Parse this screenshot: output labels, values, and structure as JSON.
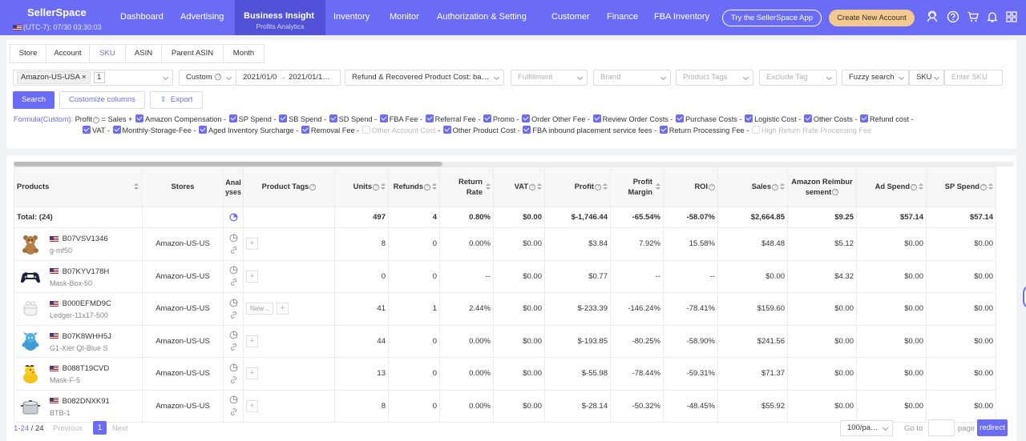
{
  "header": {
    "brand": "SellerSpace",
    "timezone": "(UTC-7): 07/30 03:30:03",
    "nav": [
      {
        "label": "Dashboard"
      },
      {
        "label": "Advertising"
      },
      {
        "label": "Business Insight",
        "sub": "Profits Analytics",
        "active": true
      },
      {
        "label": "Inventory"
      },
      {
        "label": "Monitor"
      },
      {
        "label": "Authorization & Setting"
      },
      {
        "label": "Customer"
      },
      {
        "label": "Finance"
      },
      {
        "label": "FBA Inventory"
      }
    ],
    "app_button": "Try the SellerSpace App",
    "create_button": "Create New Account",
    "icons": [
      "user-service-icon",
      "help-icon",
      "cart-icon",
      "bell-icon",
      "grid-icon"
    ],
    "accent": "#6b6cf6"
  },
  "tabs": [
    "Store",
    "Account",
    "SKU",
    "ASIN",
    "Parent ASIN",
    "Month"
  ],
  "active_tab": "SKU",
  "filters": {
    "store_chip": "Amazon-US-USA",
    "store_count": "1",
    "date_mode": "Custom",
    "date_from": "2021/01/0",
    "date_to": "2021/01/1…",
    "cost_mode": "Refund & Recovered Product Cost: ba…",
    "fulfillment_placeholder": "Fulfillment",
    "brand_placeholder": "Brand",
    "product_tags_placeholder": "Product Tags",
    "exclude_tag_placeholder": "Exclude Tag",
    "search_mode": "Fuzzy search",
    "search_field": "SKU",
    "search_placeholder": "Enter SKU"
  },
  "actions": {
    "search": "Search",
    "customize": "Customize columns",
    "export": "Export"
  },
  "formula": {
    "label": "Formula(Custom):",
    "head": "Profit",
    "eq": "= Sales +",
    "line1": [
      {
        "name": "Amazon Compensation",
        "on": true
      },
      {
        "name": "SP Spend",
        "on": true
      },
      {
        "name": "SB Spend",
        "on": true
      },
      {
        "name": "SD Spend",
        "on": true
      },
      {
        "name": "FBA Fee",
        "on": true
      },
      {
        "name": "Referral Fee",
        "on": true
      },
      {
        "name": "Promo",
        "on": true
      },
      {
        "name": "Order Other Fee",
        "on": true
      },
      {
        "name": "Review Order Costs",
        "on": true
      },
      {
        "name": "Purchase Costs",
        "on": true
      },
      {
        "name": "Logistic Cost",
        "on": true
      },
      {
        "name": "Other Costs",
        "on": true
      },
      {
        "name": "Refund cost",
        "on": true
      }
    ],
    "line2": [
      {
        "name": "VAT",
        "on": true
      },
      {
        "name": "Monthly-Storage-Fee",
        "on": true
      },
      {
        "name": "Aged Inventory Surcharge",
        "on": true
      },
      {
        "name": "Removal Fee",
        "on": true
      },
      {
        "name": "Other Account Cost",
        "on": false
      },
      {
        "name": "Other Product Cost",
        "on": true
      },
      {
        "name": "FBA inbound placement service fees",
        "on": true
      },
      {
        "name": "Return Processing Fee",
        "on": true
      },
      {
        "name": "High Return Rate Processing Fee",
        "on": false
      }
    ]
  },
  "table": {
    "columns": [
      "Products",
      "Stores",
      "Analyses",
      "Product Tags",
      "Units",
      "Refunds",
      "Return Rate",
      "VAT",
      "Profit",
      "Profit Margin",
      "ROI",
      "Sales",
      "Amazon Reimbursement",
      "Ad Spend",
      "SP Spend"
    ],
    "total": {
      "label": "Total: (24)",
      "units": "497",
      "refunds": "4",
      "return_rate": "0.80%",
      "vat": "$0.00",
      "profit": "$-1,746.44",
      "margin": "-65.54%",
      "roi": "-58.07%",
      "sales": "$2,664.85",
      "reimb": "$9.25",
      "ad": "$57.14",
      "sp": "$57.14"
    },
    "rows": [
      {
        "asin": "B07VSV1346",
        "sku": "g-mf50",
        "store": "Amazon-US-US",
        "tag": "",
        "units": "8",
        "refunds": "0",
        "rr": "0.00%",
        "vat": "$0.00",
        "profit": "$3.84",
        "margin": "7.92%",
        "roi": "15.58%",
        "sales": "$48.48",
        "reimb": "$5.12",
        "ad": "$0.00",
        "sp": "$0.00",
        "img": "teddy-bear"
      },
      {
        "asin": "B07KYV178H",
        "sku": "Mask-Box-50",
        "store": "Amazon-US-US",
        "tag": "",
        "units": "0",
        "refunds": "0",
        "rr": "--",
        "vat": "$0.00",
        "profit": "$0.77",
        "margin": "--",
        "roi": "--",
        "sales": "$0.00",
        "reimb": "$4.32",
        "ad": "$0.00",
        "sp": "$0.00",
        "img": "game-controller"
      },
      {
        "asin": "B000EFMD9C",
        "sku": "Ledger-11x17-500",
        "store": "Amazon-US-US",
        "tag": "New ..",
        "units": "41",
        "refunds": "1",
        "rr": "2.44%",
        "vat": "$0.00",
        "profit": "$-233.39",
        "margin": "-146.24%",
        "roi": "-78.41%",
        "sales": "$159.60",
        "reimb": "$0.00",
        "ad": "$0.00",
        "sp": "$0.00",
        "img": "earbuds"
      },
      {
        "asin": "B07K8WHH5J",
        "sku": "G1-Xier QI-Blue S",
        "store": "Amazon-US-US",
        "tag": "",
        "units": "44",
        "refunds": "0",
        "rr": "0.00%",
        "vat": "$0.00",
        "profit": "$-193.85",
        "margin": "-80.25%",
        "roi": "-58.90%",
        "sales": "$241.56",
        "reimb": "$0.00",
        "ad": "$0.00",
        "sp": "$0.00",
        "img": "blue-plush"
      },
      {
        "asin": "B088T19CVD",
        "sku": "Mask-F-5",
        "store": "Amazon-US-US",
        "tag": "",
        "units": "13",
        "refunds": "0",
        "rr": "0.00%",
        "vat": "$0.00",
        "profit": "$-55.98",
        "margin": "-78.44%",
        "roi": "-59.31%",
        "sales": "$71.37",
        "reimb": "$0.00",
        "ad": "$0.00",
        "sp": "$0.00",
        "img": "duck"
      },
      {
        "asin": "B082DNXK91",
        "sku": "BTB-1",
        "store": "Amazon-US-US",
        "tag": "",
        "units": "8",
        "refunds": "0",
        "rr": "0.00%",
        "vat": "$0.00",
        "profit": "$-28.14",
        "margin": "-50.32%",
        "roi": "-48.45%",
        "sales": "$55.92",
        "reimb": "$0.00",
        "ad": "$0.00",
        "sp": "$0.00",
        "img": "pot"
      }
    ]
  },
  "pagination": {
    "range": "1-24",
    "total": "24",
    "prev": "Previous",
    "current": "1",
    "next": "Next",
    "page_size": "100/pa…",
    "goto": "Go to",
    "page": "page",
    "redirect": "redirect"
  }
}
